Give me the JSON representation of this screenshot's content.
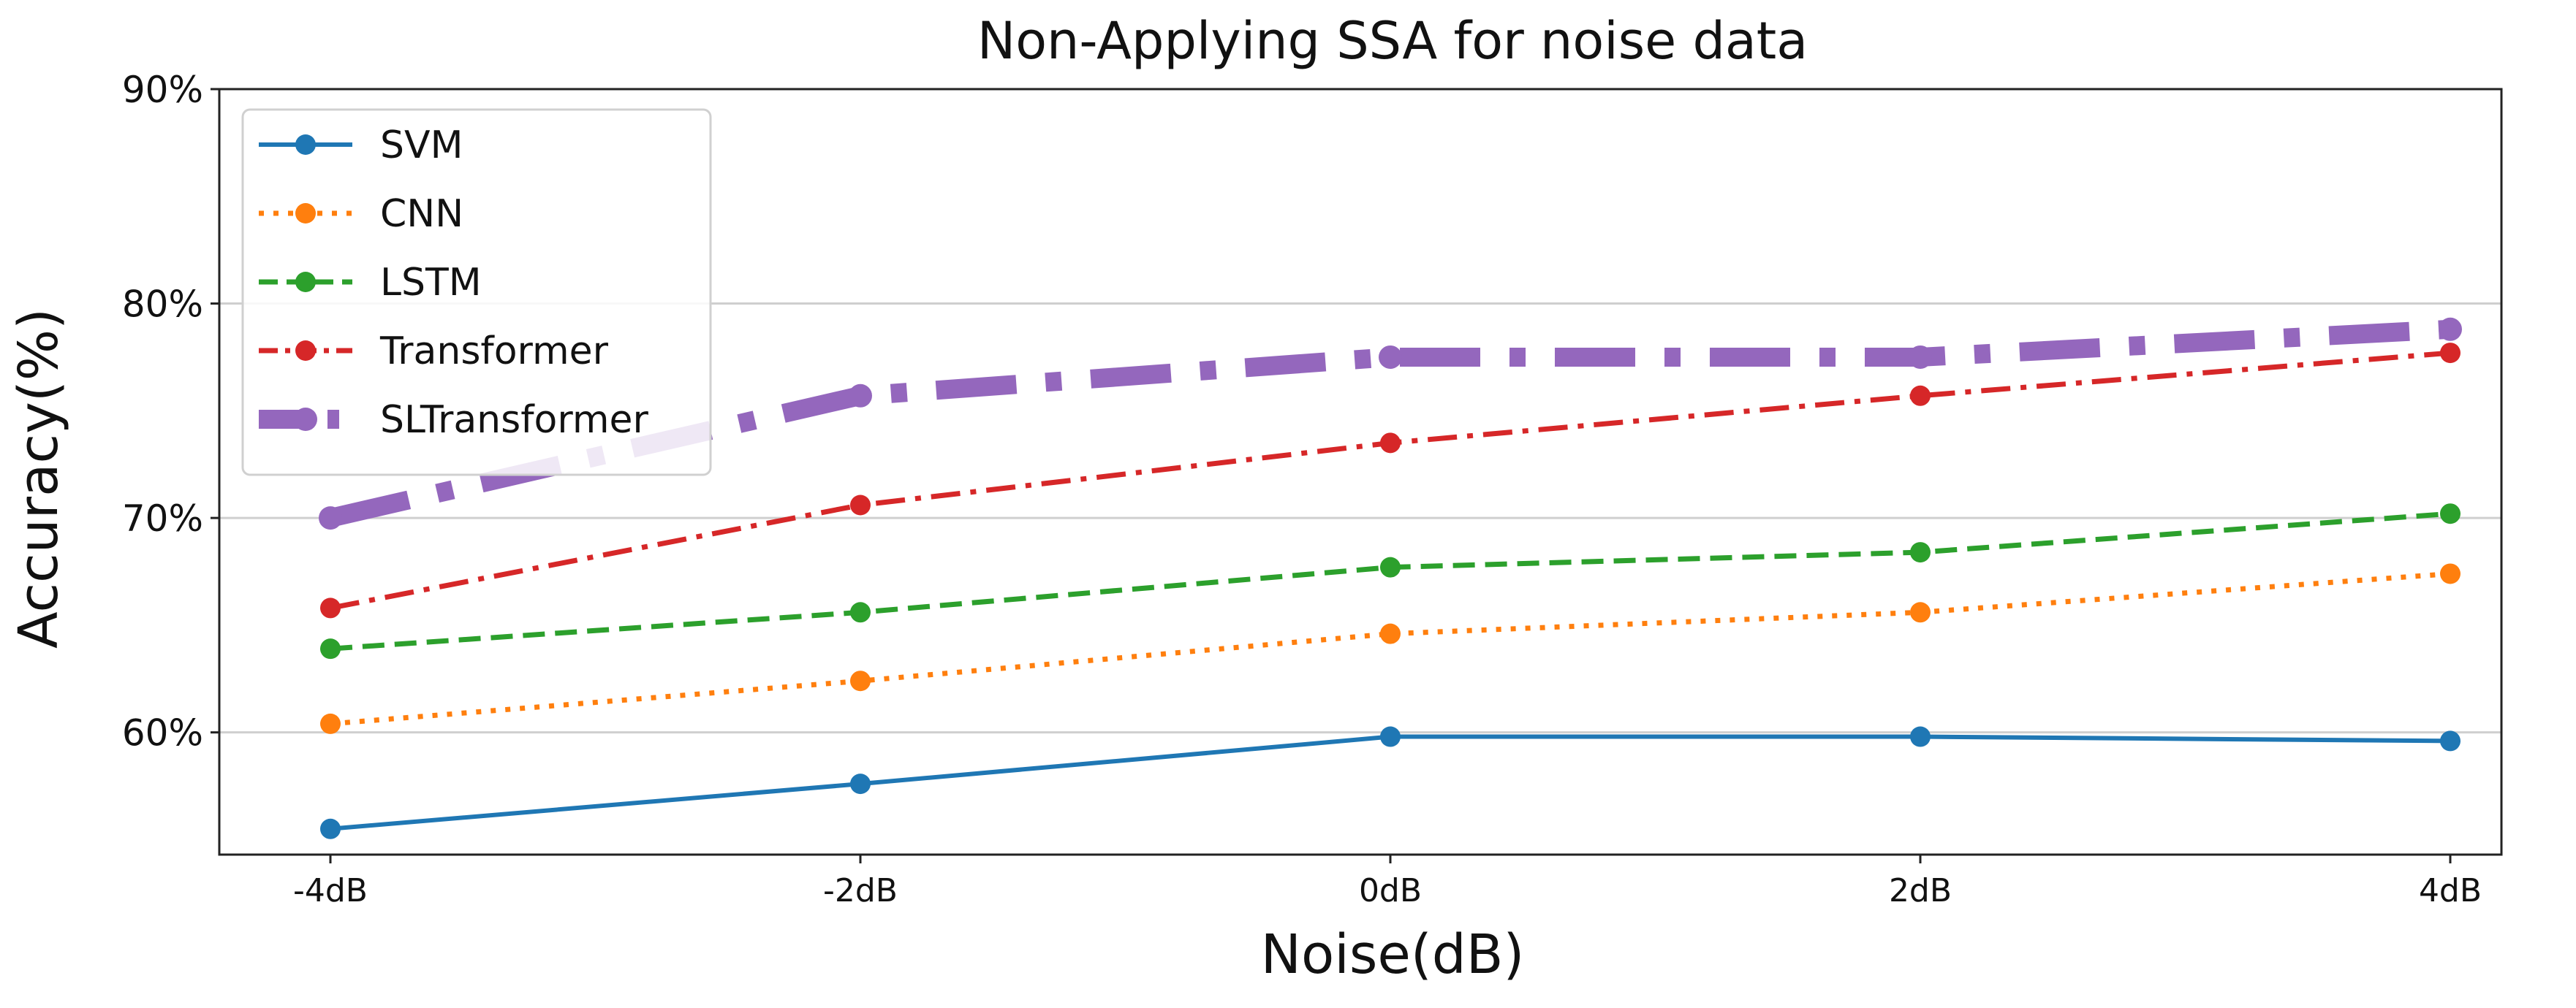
{
  "chart_data": {
    "type": "line",
    "title": "Non-Applying SSA for noise data",
    "xlabel": "Noise(dB)",
    "ylabel": "Accuracy(%)",
    "categories": [
      "-4dB",
      "-2dB",
      "0dB",
      "2dB",
      "4dB"
    ],
    "ylim": [
      54.3,
      90
    ],
    "yticks": [
      60,
      70,
      80,
      90
    ],
    "ytick_labels": [
      "60%",
      "70%",
      "80%",
      "90%"
    ],
    "grid": "horizontal",
    "legend_position": "top-left",
    "series": [
      {
        "name": "SVM",
        "color": "#1f77b4",
        "style": "solid",
        "values": [
          55.5,
          57.6,
          59.8,
          59.8,
          59.6
        ]
      },
      {
        "name": "CNN",
        "color": "#ff7f0e",
        "style": "dotted",
        "values": [
          60.4,
          62.4,
          64.6,
          65.6,
          67.4
        ]
      },
      {
        "name": "LSTM",
        "color": "#2ca02c",
        "style": "dashed",
        "values": [
          63.9,
          65.6,
          67.7,
          68.4,
          70.2
        ]
      },
      {
        "name": "Transformer",
        "color": "#d62728",
        "style": "dashdot",
        "values": [
          65.8,
          70.6,
          73.5,
          75.7,
          77.7
        ]
      },
      {
        "name": "SLTransformer",
        "color": "#9467bd",
        "style": "dashdot-thick",
        "values": [
          70.0,
          75.7,
          77.5,
          77.5,
          78.8
        ]
      }
    ]
  }
}
